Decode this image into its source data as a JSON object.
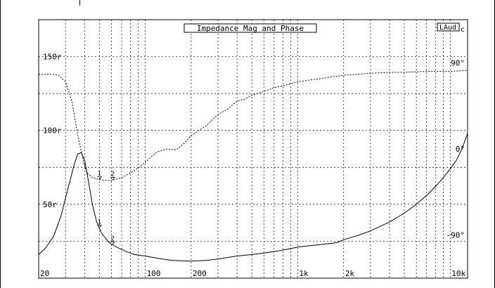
{
  "chart_data": {
    "type": "line",
    "title": "Impedance Mag and Phase",
    "logo": "LAud",
    "logo_suffix": "c",
    "x_scale": "log",
    "x_range": [
      20,
      13000
    ],
    "x_tick_labels": [
      "20",
      "100",
      "200",
      "1k",
      "2k",
      "10k"
    ],
    "x_tick_values": [
      20,
      100,
      200,
      1000,
      2000,
      10000
    ],
    "left_axis": {
      "range": [
        0,
        175
      ],
      "tick_labels": [
        "150r",
        "100r",
        "50r"
      ],
      "tick_values": [
        150,
        100,
        50
      ]
    },
    "right_axis": {
      "range": [
        -135,
        135
      ],
      "tick_labels": [
        "90°",
        "0°",
        "-90°"
      ],
      "tick_values": [
        90,
        0,
        -90
      ]
    },
    "grid": true,
    "series": [
      {
        "style": "solid",
        "axis": "left",
        "points": [
          [
            20,
            16
          ],
          [
            22,
            20
          ],
          [
            25,
            28
          ],
          [
            28,
            42
          ],
          [
            31,
            60
          ],
          [
            34,
            76
          ],
          [
            36,
            84
          ],
          [
            38,
            85
          ],
          [
            40,
            80
          ],
          [
            42,
            68
          ],
          [
            45,
            50
          ],
          [
            48,
            38
          ],
          [
            52,
            30
          ],
          [
            58,
            24
          ],
          [
            65,
            21
          ],
          [
            75,
            18
          ],
          [
            85,
            16
          ],
          [
            100,
            15
          ],
          [
            120,
            13.5
          ],
          [
            150,
            12
          ],
          [
            200,
            11.5
          ],
          [
            250,
            12
          ],
          [
            300,
            13
          ],
          [
            400,
            15
          ],
          [
            500,
            16
          ],
          [
            600,
            17
          ],
          [
            700,
            18
          ],
          [
            800,
            19
          ],
          [
            900,
            20
          ],
          [
            1000,
            21
          ],
          [
            1200,
            22
          ],
          [
            1500,
            23
          ],
          [
            1800,
            24
          ],
          [
            2000,
            26
          ],
          [
            2500,
            29
          ],
          [
            3000,
            32
          ],
          [
            4000,
            38
          ],
          [
            5000,
            44
          ],
          [
            6000,
            50
          ],
          [
            7000,
            56
          ],
          [
            8000,
            62
          ],
          [
            9000,
            68
          ],
          [
            10000,
            74
          ],
          [
            11000,
            80
          ],
          [
            12000,
            88
          ],
          [
            13000,
            98
          ]
        ]
      },
      {
        "style": "dashed",
        "axis": "right",
        "points": [
          [
            20,
            78
          ],
          [
            24,
            78
          ],
          [
            27,
            77
          ],
          [
            30,
            70
          ],
          [
            33,
            50
          ],
          [
            36,
            15
          ],
          [
            38,
            -2
          ],
          [
            40,
            -18
          ],
          [
            42,
            -26
          ],
          [
            45,
            -30
          ],
          [
            50,
            -32
          ],
          [
            55,
            -33
          ],
          [
            60,
            -33
          ],
          [
            70,
            -30
          ],
          [
            80,
            -25
          ],
          [
            90,
            -20
          ],
          [
            100,
            -14
          ],
          [
            110,
            -8
          ],
          [
            120,
            -3
          ],
          [
            140,
            0
          ],
          [
            160,
            -1
          ],
          [
            180,
            6
          ],
          [
            200,
            14
          ],
          [
            250,
            24
          ],
          [
            300,
            36
          ],
          [
            350,
            42
          ],
          [
            400,
            50
          ],
          [
            450,
            52
          ],
          [
            500,
            56
          ],
          [
            550,
            58
          ],
          [
            600,
            60
          ],
          [
            700,
            64
          ],
          [
            800,
            66
          ],
          [
            900,
            68
          ],
          [
            1000,
            70
          ],
          [
            1200,
            72
          ],
          [
            1500,
            74
          ],
          [
            1800,
            76
          ],
          [
            2000,
            77
          ],
          [
            2500,
            78
          ],
          [
            3000,
            79
          ],
          [
            4000,
            80
          ],
          [
            5000,
            80
          ],
          [
            7000,
            81
          ],
          [
            10000,
            81
          ],
          [
            13000,
            82
          ]
        ]
      }
    ],
    "annotations": [
      {
        "label": "1",
        "x": 50,
        "series": 1
      },
      {
        "label": "2",
        "x": 61,
        "series": 1
      },
      {
        "label": "1",
        "x": 50,
        "series": 0
      },
      {
        "label": "2",
        "x": 61,
        "series": 0
      }
    ]
  }
}
